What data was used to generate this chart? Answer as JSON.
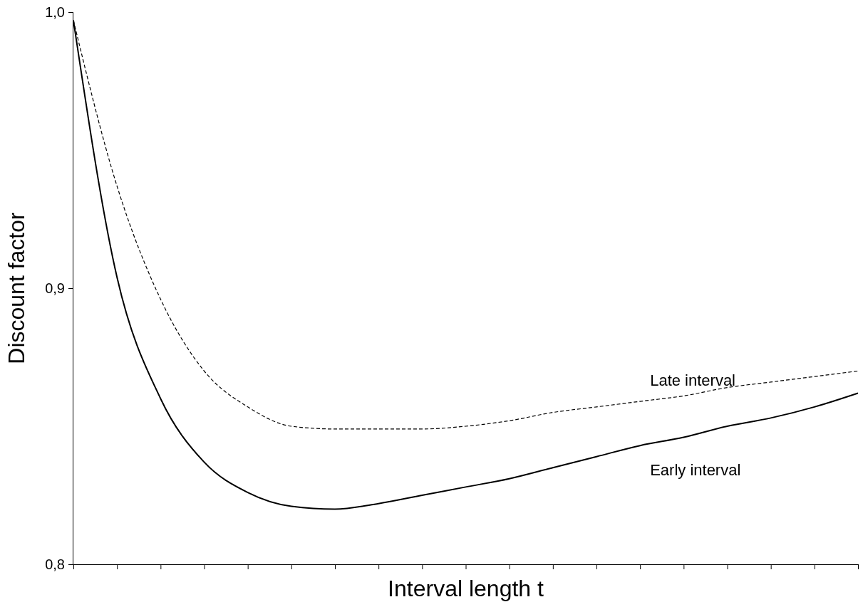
{
  "chart_data": {
    "type": "line",
    "xlabel": "Interval length t",
    "ylabel": "Discount factor",
    "categories": [
      null,
      null,
      null,
      null,
      null,
      null,
      null,
      null,
      null,
      null,
      null,
      null,
      null,
      null,
      null,
      null,
      null,
      null,
      null
    ],
    "series": [
      {
        "name": "Late interval",
        "color": "#000000",
        "line_style": "dashed",
        "values": [
          0.997,
          0.937,
          0.896,
          0.87,
          0.857,
          0.85,
          0.849,
          0.849,
          0.849,
          0.85,
          0.852,
          0.855,
          0.857,
          0.859,
          0.861,
          0.864,
          0.866,
          0.868,
          0.87
        ]
      },
      {
        "name": "Early interval",
        "color": "#000000",
        "line_style": "solid",
        "values": [
          0.997,
          0.904,
          0.86,
          0.837,
          0.826,
          0.821,
          0.82,
          0.822,
          0.825,
          0.828,
          0.831,
          0.835,
          0.839,
          0.843,
          0.846,
          0.85,
          0.853,
          0.857,
          0.862
        ]
      }
    ],
    "ylim": [
      0.8,
      1.0
    ],
    "yticks": [
      {
        "value": 0.8,
        "label": "0,8"
      },
      {
        "value": 0.9,
        "label": "0,9"
      },
      {
        "value": 1.0,
        "label": "1,0"
      }
    ],
    "grid": false,
    "legend": false,
    "marker": "none"
  }
}
